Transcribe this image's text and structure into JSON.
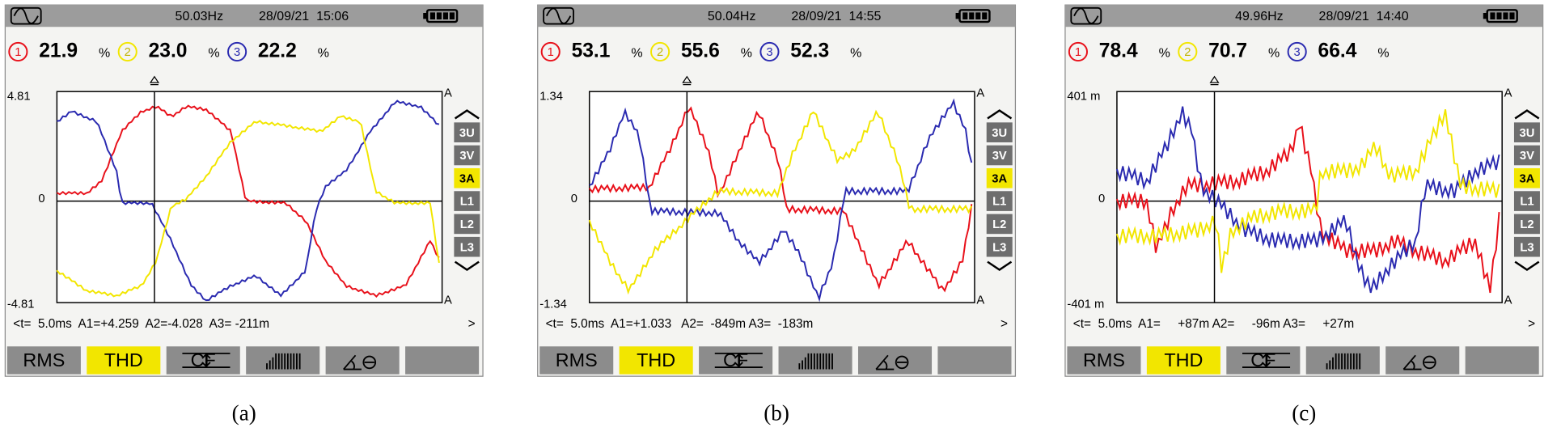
{
  "panels": [
    {
      "frequency": "50.03Hz",
      "datetime": "28/09/21  15:06",
      "readings": [
        {
          "channel": "1",
          "value": "21.9",
          "unit": "%"
        },
        {
          "channel": "2",
          "value": "23.0",
          "unit": "%"
        },
        {
          "channel": "3",
          "value": "22.2",
          "unit": "%"
        }
      ],
      "scale_top": "4.81",
      "scale_zero": "0",
      "scale_bottom": "-4.81",
      "current_unit": "A",
      "channel_buttons": [
        "3U",
        "3V",
        "3A",
        "L1",
        "L2",
        "L3"
      ],
      "cursor_readout": "<t=  5.0ms  A1=+4.259  A2=-4.028  A3= -211m",
      "cursor_end": ">",
      "menu": [
        "RMS",
        "THD",
        "CF"
      ],
      "caption": "(a)"
    },
    {
      "frequency": "50.04Hz",
      "datetime": "28/09/21  14:55",
      "readings": [
        {
          "channel": "1",
          "value": "53.1",
          "unit": "%"
        },
        {
          "channel": "2",
          "value": "55.6",
          "unit": "%"
        },
        {
          "channel": "3",
          "value": "52.3",
          "unit": "%"
        }
      ],
      "scale_top": "1.34",
      "scale_zero": "0",
      "scale_bottom": "-1.34",
      "current_unit": "A",
      "channel_buttons": [
        "3U",
        "3V",
        "3A",
        "L1",
        "L2",
        "L3"
      ],
      "cursor_readout": "<t=  5.0ms  A1=+1.033   A2=  -849m A3=  -183m",
      "cursor_end": ">",
      "menu": [
        "RMS",
        "THD",
        "CF"
      ],
      "caption": "(b)"
    },
    {
      "frequency": "49.96Hz",
      "datetime": "28/09/21  14:40",
      "readings": [
        {
          "channel": "1",
          "value": "78.4",
          "unit": "%"
        },
        {
          "channel": "2",
          "value": "70.7",
          "unit": "%"
        },
        {
          "channel": "3",
          "value": "66.4",
          "unit": "%"
        }
      ],
      "scale_top": "401 m",
      "scale_zero": "0",
      "scale_bottom": "-401 m",
      "current_unit": "A",
      "channel_buttons": [
        "3U",
        "3V",
        "3A",
        "L1",
        "L2",
        "L3"
      ],
      "cursor_readout": "<t=  5.0ms  A1=     +87m A2=     -96m A3=     +27m",
      "cursor_end": ">",
      "menu": [
        "RMS",
        "THD",
        "CF"
      ],
      "caption": "(c)"
    }
  ]
}
